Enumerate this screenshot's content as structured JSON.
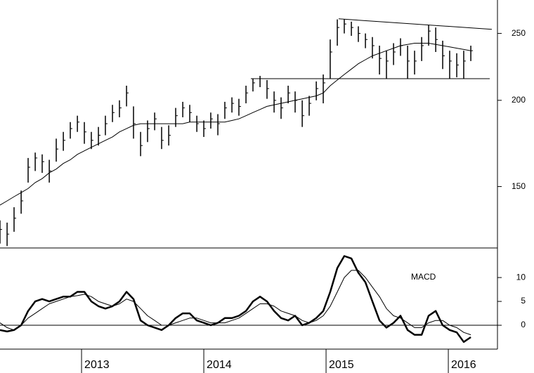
{
  "chart_data": [
    {
      "type": "ohlc",
      "x": [
        2012.333,
        2012.391,
        2012.448,
        2012.506,
        2012.563,
        2012.621,
        2012.678,
        2012.736,
        2012.793,
        2012.851,
        2012.908,
        2012.966,
        2013.023,
        2013.08,
        2013.138,
        2013.195,
        2013.253,
        2013.31,
        2013.368,
        2013.425,
        2013.483,
        2013.54,
        2013.598,
        2013.655,
        2013.713,
        2013.77,
        2013.828,
        2013.885,
        2013.943,
        2014.0,
        2014.057,
        2014.115,
        2014.172,
        2014.23,
        2014.287,
        2014.345,
        2014.402,
        2014.46,
        2014.517,
        2014.575,
        2014.632,
        2014.69,
        2014.747,
        2014.805,
        2014.862,
        2014.92,
        2014.977,
        2015.034,
        2015.092,
        2015.149,
        2015.207,
        2015.264,
        2015.322,
        2015.379,
        2015.437,
        2015.494,
        2015.552,
        2015.609,
        2015.667,
        2015.724,
        2015.782,
        2015.839,
        2015.897,
        2015.954,
        2016.011,
        2016.069,
        2016.126,
        2016.184
      ],
      "high": [
        134,
        133,
        140,
        148,
        165,
        168,
        167,
        164,
        176,
        180,
        186,
        190,
        186,
        180,
        183,
        190,
        197,
        200,
        210,
        196,
        180,
        187,
        192,
        183,
        184,
        195,
        199,
        197,
        190,
        187,
        192,
        191,
        199,
        202,
        201,
        210,
        215,
        217,
        214,
        206,
        202,
        210,
        206,
        200,
        203,
        213,
        218,
        245,
        262,
        262,
        260,
        256,
        250,
        247,
        240,
        236,
        242,
        246,
        240,
        236,
        247,
        257,
        255,
        244,
        236,
        234,
        236,
        240
      ],
      "low": [
        124,
        123,
        129,
        137,
        152,
        158,
        157,
        152,
        163,
        169,
        176,
        180,
        173,
        170,
        172,
        178,
        186,
        189,
        196,
        176,
        166,
        174,
        181,
        170,
        172,
        183,
        189,
        186,
        180,
        177,
        182,
        178,
        188,
        192,
        190,
        198,
        206,
        209,
        201,
        192,
        188,
        198,
        192,
        183,
        190,
        200,
        198,
        215,
        240,
        250,
        248,
        243,
        238,
        230,
        218,
        215,
        225,
        232,
        215,
        218,
        228,
        240,
        235,
        222,
        215,
        216,
        215,
        228
      ],
      "close": [
        130,
        128,
        135,
        143,
        160,
        165,
        163,
        158,
        170,
        175,
        182,
        186,
        180,
        175,
        178,
        185,
        192,
        195,
        205,
        185,
        172,
        182,
        188,
        175,
        178,
        190,
        195,
        192,
        185,
        182,
        188,
        185,
        195,
        198,
        196,
        205,
        212,
        215,
        208,
        200,
        195,
        205,
        200,
        190,
        198,
        208,
        212,
        235,
        255,
        258,
        255,
        250,
        245,
        240,
        230,
        228,
        235,
        240,
        228,
        228,
        240,
        252,
        245,
        232,
        228,
        225,
        228,
        236
      ],
      "ma": [
        141,
        143,
        145,
        147,
        149,
        152,
        154,
        157,
        159,
        162,
        164,
        167,
        169,
        171,
        173,
        175,
        177,
        180,
        182,
        184,
        185,
        185,
        185,
        185,
        185,
        185,
        185,
        186,
        186,
        186,
        186,
        186,
        186,
        187,
        188,
        190,
        192,
        194,
        196,
        197,
        198,
        199,
        200,
        201,
        202,
        203,
        205,
        210,
        214,
        218,
        222,
        226,
        229,
        232,
        234,
        236,
        238,
        240,
        241,
        242,
        242,
        242,
        241,
        240,
        239,
        238,
        237,
        236
      ],
      "trendlines": [
        {
          "x": [
            2014.385,
            2016.339
          ],
          "values": [
            215,
            215
          ]
        },
        {
          "x": [
            2015.103,
            2016.356
          ],
          "values": [
            262.5,
            253.5
          ]
        }
      ],
      "xlim": [
        2012.333,
        2016.402
      ],
      "ylim": [
        122.5,
        279.5
      ],
      "yticks": [
        150,
        200,
        250
      ],
      "log_scale": true,
      "color": "#000000"
    },
    {
      "type": "line",
      "label": "MACD",
      "x": [
        2012.333,
        2012.391,
        2012.448,
        2012.506,
        2012.563,
        2012.621,
        2012.678,
        2012.736,
        2012.793,
        2012.851,
        2012.908,
        2012.966,
        2013.023,
        2013.08,
        2013.138,
        2013.195,
        2013.253,
        2013.31,
        2013.368,
        2013.425,
        2013.483,
        2013.54,
        2013.598,
        2013.655,
        2013.713,
        2013.77,
        2013.828,
        2013.885,
        2013.943,
        2014.0,
        2014.057,
        2014.115,
        2014.172,
        2014.23,
        2014.287,
        2014.345,
        2014.402,
        2014.46,
        2014.517,
        2014.575,
        2014.632,
        2014.69,
        2014.747,
        2014.805,
        2014.862,
        2014.92,
        2014.977,
        2015.034,
        2015.092,
        2015.149,
        2015.207,
        2015.264,
        2015.322,
        2015.379,
        2015.437,
        2015.494,
        2015.552,
        2015.609,
        2015.667,
        2015.724,
        2015.782,
        2015.839,
        2015.897,
        2015.954,
        2016.011,
        2016.069,
        2016.126,
        2016.184
      ],
      "series": [
        {
          "color": "#000000",
          "width": 2.5,
          "values": [
            -1,
            -1.3,
            -1,
            0,
            3,
            5,
            5.5,
            5,
            5.5,
            6,
            6,
            7,
            7,
            5,
            4,
            3.5,
            4,
            5,
            7,
            5.5,
            1,
            0,
            -0.5,
            -1,
            0,
            1.5,
            2.5,
            2.5,
            1,
            0.5,
            0,
            0.5,
            1.5,
            1.5,
            2,
            3,
            5,
            6,
            5,
            3,
            1.5,
            1,
            2,
            0,
            0.5,
            1.5,
            3,
            7,
            12,
            14.5,
            14,
            11,
            9,
            5,
            1,
            -0.5,
            0.5,
            2,
            -1,
            -2,
            -2,
            2,
            3,
            0,
            -1,
            -1.5,
            -3.5,
            -2.5
          ]
        },
        {
          "color": "#000000",
          "width": 1,
          "values": [
            0.5,
            -0.5,
            -1,
            0,
            1.5,
            2.5,
            3.5,
            4.5,
            5,
            5.5,
            6,
            6.2,
            6.5,
            6,
            5,
            4.5,
            4,
            4.5,
            5.5,
            5,
            3.5,
            2,
            1,
            0,
            0,
            0.5,
            1,
            1.5,
            1.5,
            1,
            0.5,
            0.5,
            0.5,
            1,
            1.5,
            2.5,
            3.5,
            4.5,
            4.5,
            4,
            3,
            2.5,
            2,
            1,
            0.5,
            1,
            2,
            4,
            7,
            10,
            11.5,
            11.5,
            10,
            8,
            6,
            3.5,
            2,
            1.5,
            0.5,
            -0.5,
            -0.5,
            0.5,
            1,
            1,
            0,
            -0.5,
            -1.5,
            -2
          ]
        }
      ],
      "hline": 0,
      "xlim": [
        2012.333,
        2016.402
      ],
      "xticks": [
        2013,
        2014,
        2015,
        2016
      ],
      "ylim": [
        -5,
        16.2
      ],
      "yticks": [
        0,
        5,
        10
      ]
    }
  ]
}
